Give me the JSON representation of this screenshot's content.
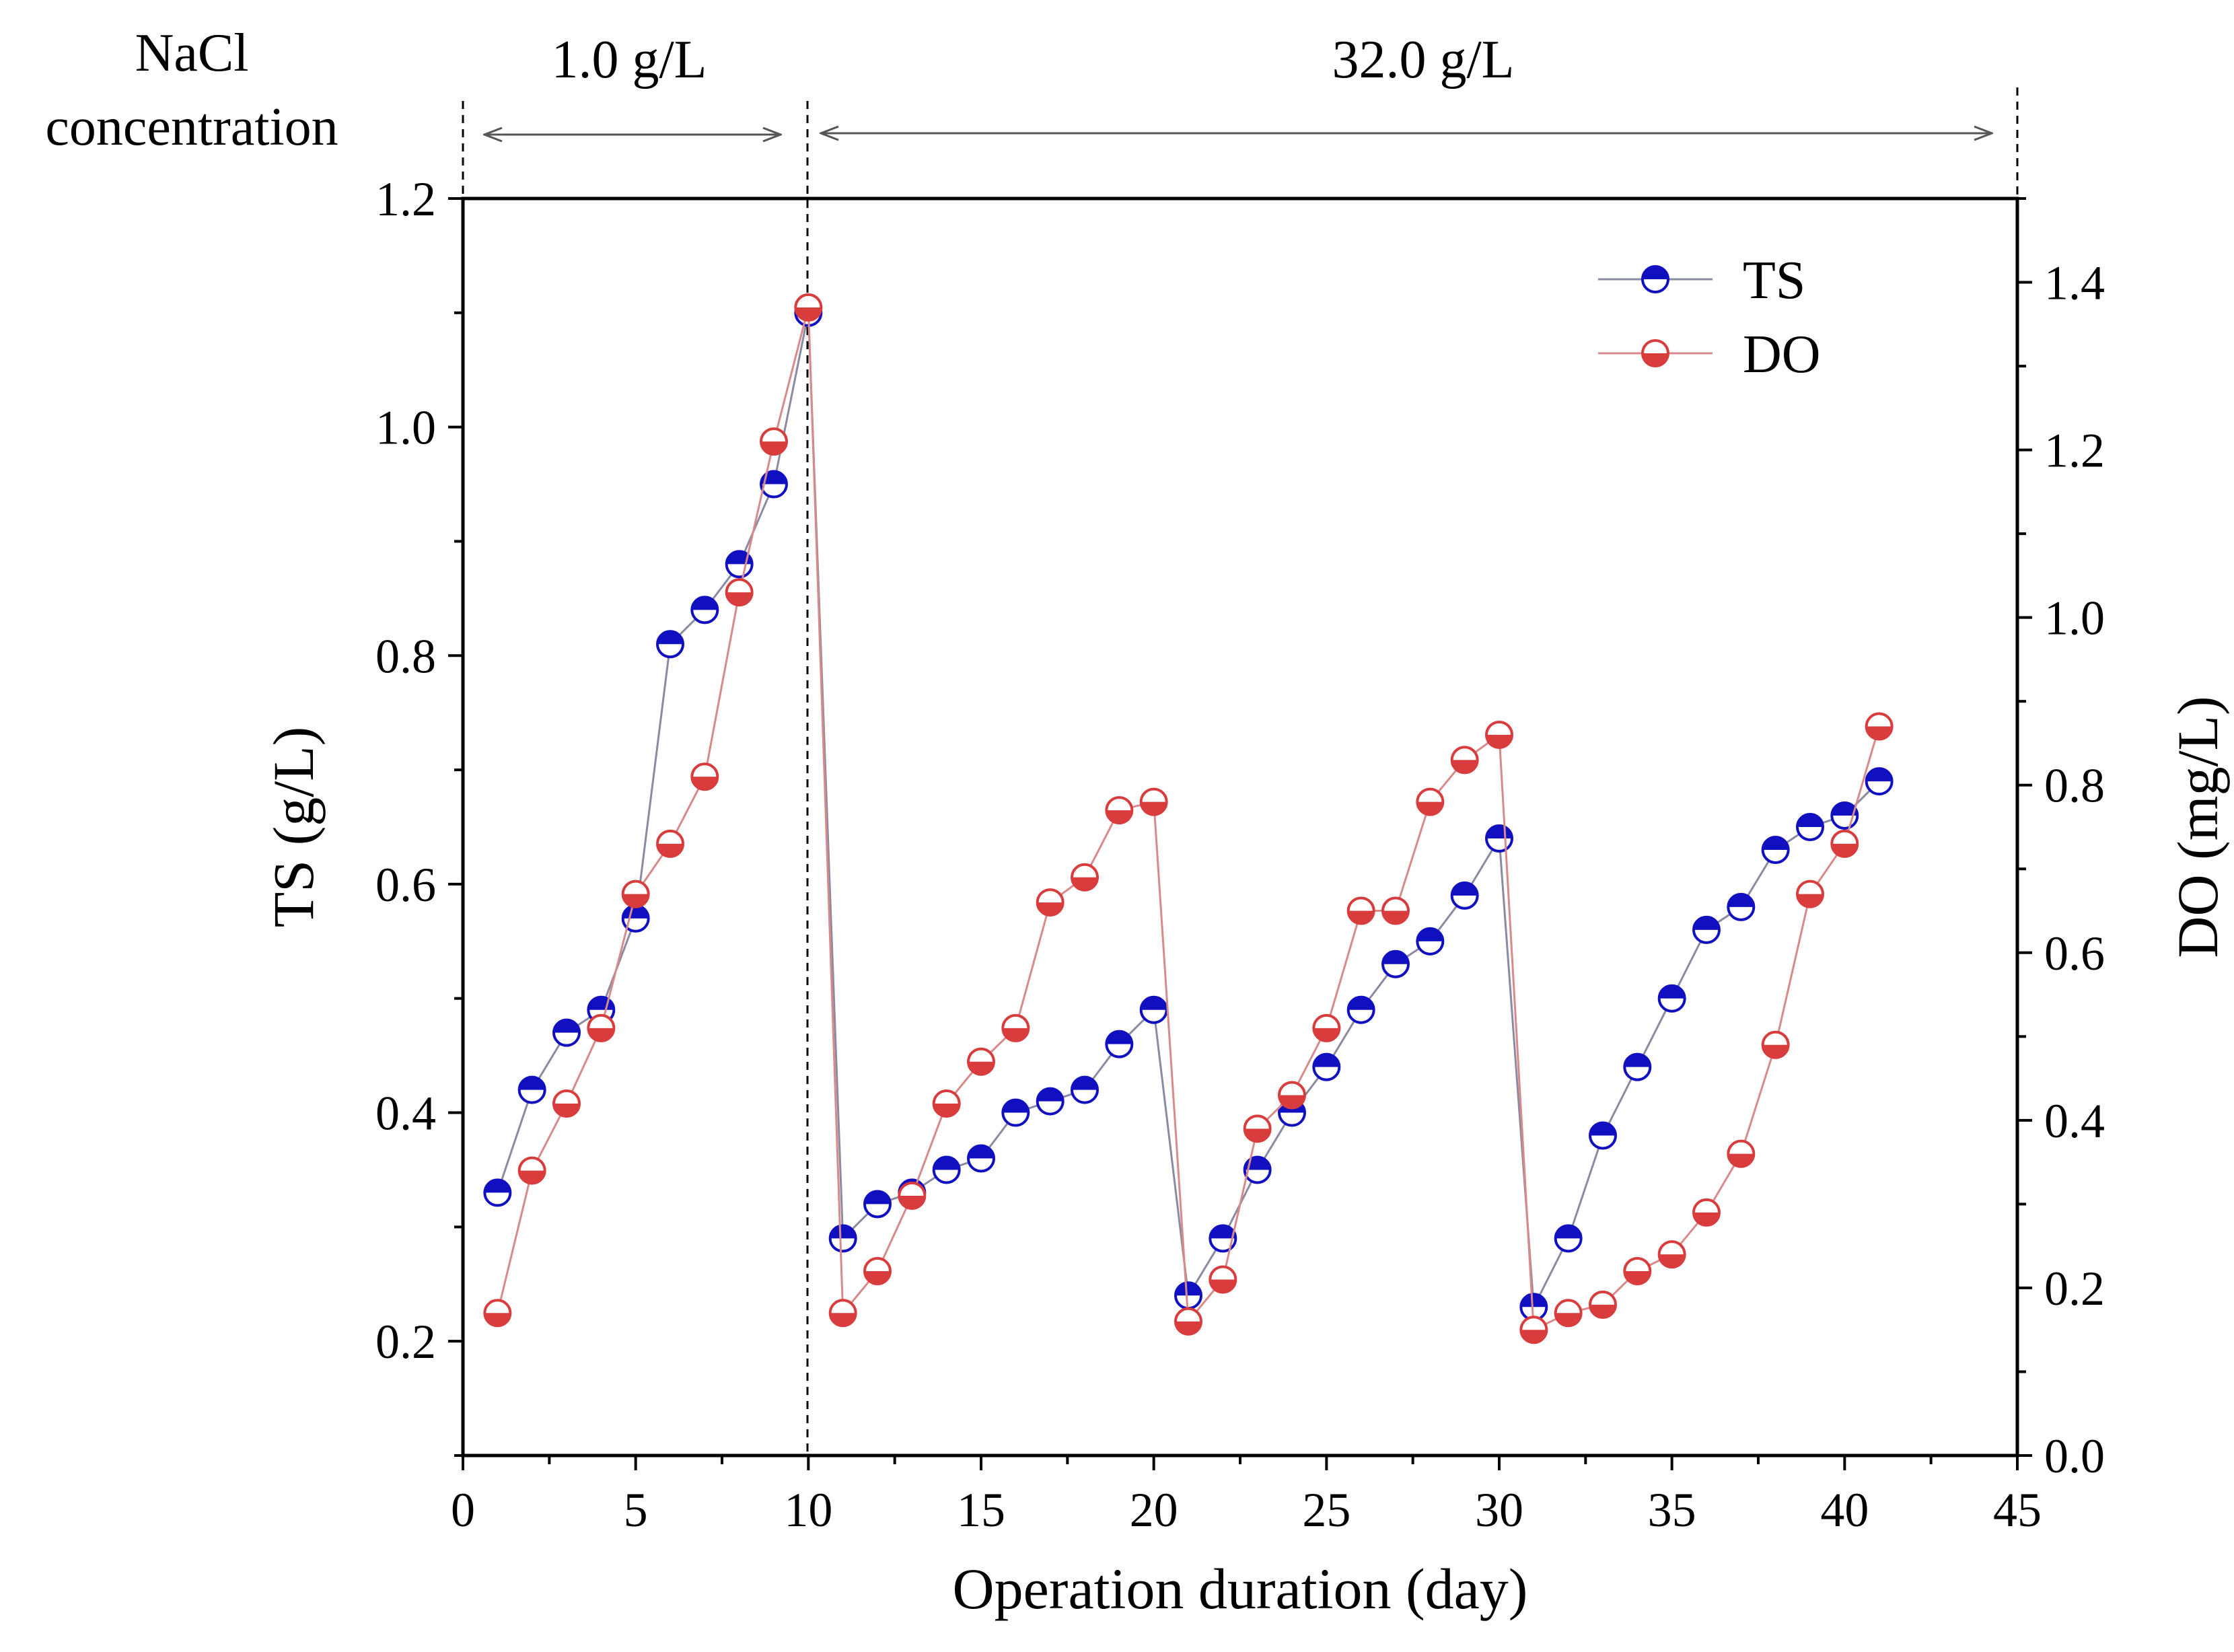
{
  "header": {
    "nacl_label_line1": "NaCl",
    "nacl_label_line2": "concentration",
    "phase1_label": "1.0 g/L",
    "phase2_label": "32.0 g/L"
  },
  "chart_data": {
    "type": "scatter",
    "xlabel": "Operation duration (day)",
    "ylabel_left": "TS (g/L)",
    "ylabel_right": "DO (mg/L)",
    "xlim": [
      0,
      45
    ],
    "ylim_left": [
      0.1,
      1.2
    ],
    "ylim_right": [
      0.0,
      1.5
    ],
    "x_ticks": [
      0,
      5,
      10,
      15,
      20,
      25,
      30,
      35,
      40,
      45
    ],
    "y_left_ticks": [
      0.2,
      0.4,
      0.6,
      0.8,
      1.0,
      1.2
    ],
    "y_left_tick_labels": [
      "0.2",
      "0.4",
      "0.6",
      "0.8",
      "1.0",
      "1.2"
    ],
    "y_right_ticks": [
      0.0,
      0.2,
      0.4,
      0.6,
      0.8,
      1.0,
      1.2,
      1.4
    ],
    "y_right_tick_labels": [
      "0.0",
      "0.2",
      "0.4",
      "0.6",
      "0.8",
      "1.0",
      "1.2",
      "1.4"
    ],
    "phase_boundaries": [
      0,
      10,
      45
    ],
    "legend_position": "top-right",
    "series": [
      {
        "name": "TS",
        "axis": "left",
        "color": "#1010c0",
        "line_color": "#8a8aa0",
        "x": [
          1,
          2,
          3,
          4,
          5,
          6,
          7,
          8,
          9,
          10,
          11,
          12,
          13,
          14,
          15,
          16,
          17,
          18,
          19,
          20,
          21,
          22,
          23,
          24,
          25,
          26,
          27,
          28,
          29,
          30,
          31,
          32,
          33,
          34,
          35,
          36,
          37,
          38,
          39,
          40,
          41
        ],
        "values": [
          0.33,
          0.42,
          0.47,
          0.49,
          0.57,
          0.81,
          0.84,
          0.88,
          0.95,
          1.1,
          0.29,
          0.32,
          0.33,
          0.35,
          0.36,
          0.4,
          0.41,
          0.42,
          0.46,
          0.49,
          0.24,
          0.29,
          0.35,
          0.4,
          0.44,
          0.49,
          0.53,
          0.55,
          0.59,
          0.64,
          0.23,
          0.29,
          0.38,
          0.44,
          0.5,
          0.56,
          0.58,
          0.63,
          0.65,
          0.66,
          0.69
        ]
      },
      {
        "name": "DO",
        "axis": "right",
        "color": "#d83c3c",
        "line_color": "#d88a8a",
        "x": [
          1,
          2,
          3,
          4,
          5,
          6,
          7,
          8,
          9,
          10,
          11,
          12,
          13,
          14,
          15,
          16,
          17,
          18,
          19,
          20,
          21,
          22,
          23,
          24,
          25,
          26,
          27,
          28,
          29,
          30,
          31,
          32,
          33,
          34,
          35,
          36,
          37,
          38,
          39,
          40,
          41
        ],
        "values": [
          0.17,
          0.34,
          0.42,
          0.51,
          0.67,
          0.73,
          0.81,
          1.03,
          1.21,
          1.37,
          0.17,
          0.22,
          0.31,
          0.42,
          0.47,
          0.51,
          0.66,
          0.69,
          0.77,
          0.78,
          0.16,
          0.21,
          0.39,
          0.43,
          0.51,
          0.65,
          0.65,
          0.78,
          0.83,
          0.86,
          0.15,
          0.17,
          0.18,
          0.22,
          0.24,
          0.29,
          0.36,
          0.49,
          0.67,
          0.73,
          0.87
        ]
      }
    ]
  }
}
